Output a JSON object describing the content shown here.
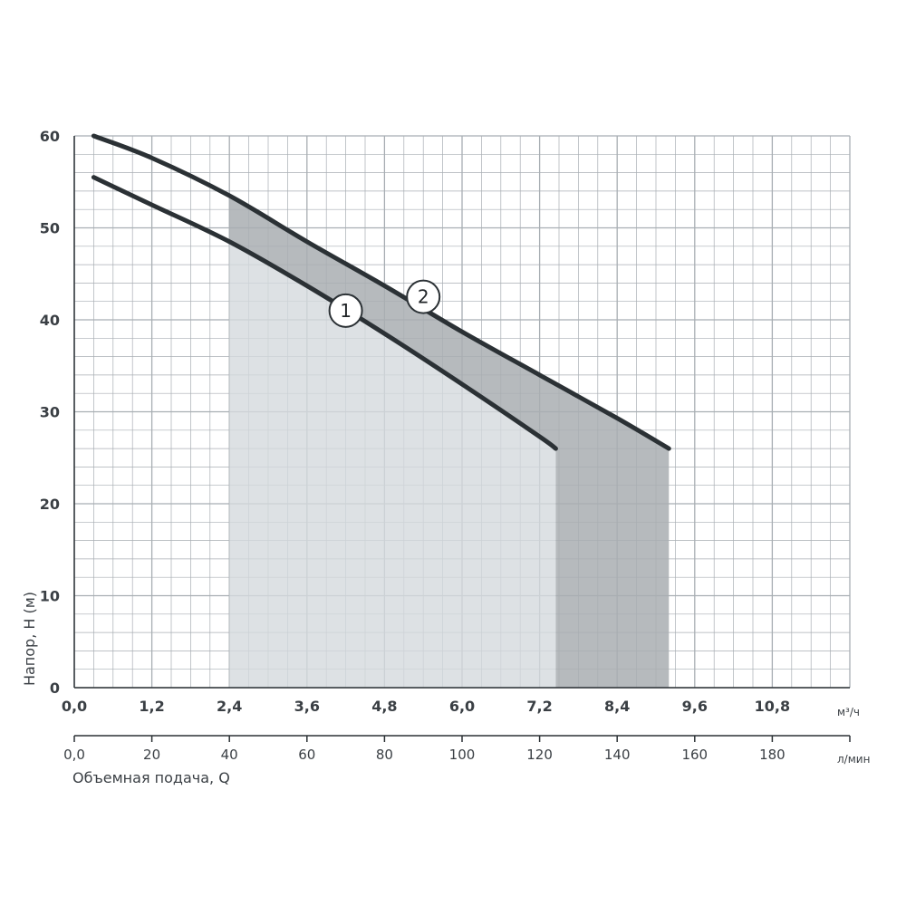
{
  "chart_data": {
    "type": "line",
    "ylabel": "Напор, H (м)",
    "xlabel": "Объемная подача, Q",
    "y_ticks": [
      "0",
      "10",
      "20",
      "30",
      "40",
      "50",
      "60"
    ],
    "x_primary_unit": "м³/ч",
    "x_primary_ticks": [
      "0,0",
      "1,2",
      "2,4",
      "3,6",
      "4,8",
      "6,0",
      "7,2",
      "8,4",
      "9,6",
      "10,8"
    ],
    "x_secondary_unit": "л/мин",
    "x_secondary_ticks": [
      "0,0",
      "20",
      "40",
      "60",
      "80",
      "100",
      "120",
      "140",
      "160",
      "180"
    ],
    "xlim": [
      0,
      12
    ],
    "ylim": [
      0,
      60
    ],
    "grid": true,
    "series": [
      {
        "name": "1",
        "x": [
          0.3,
          1.2,
          2.4,
          3.6,
          4.8,
          6.0,
          7.2,
          7.45
        ],
        "y": [
          55.5,
          52.5,
          48.5,
          43.7,
          38.5,
          33.0,
          27.3,
          26.0
        ]
      },
      {
        "name": "2",
        "x": [
          0.3,
          1.2,
          2.4,
          3.6,
          4.8,
          6.0,
          7.2,
          8.4,
          9.2
        ],
        "y": [
          60.0,
          57.6,
          53.5,
          48.5,
          43.7,
          38.7,
          34.0,
          29.3,
          26.0
        ]
      }
    ],
    "operating_range": {
      "x_start": 2.4,
      "series_1_end": 7.45,
      "series_2_end": 9.2
    },
    "colors": {
      "grid": "#a8aeb3",
      "curve": "#2b3135",
      "fill_light": "#d5d9dd",
      "fill_dark": "#a9aeb2"
    }
  }
}
